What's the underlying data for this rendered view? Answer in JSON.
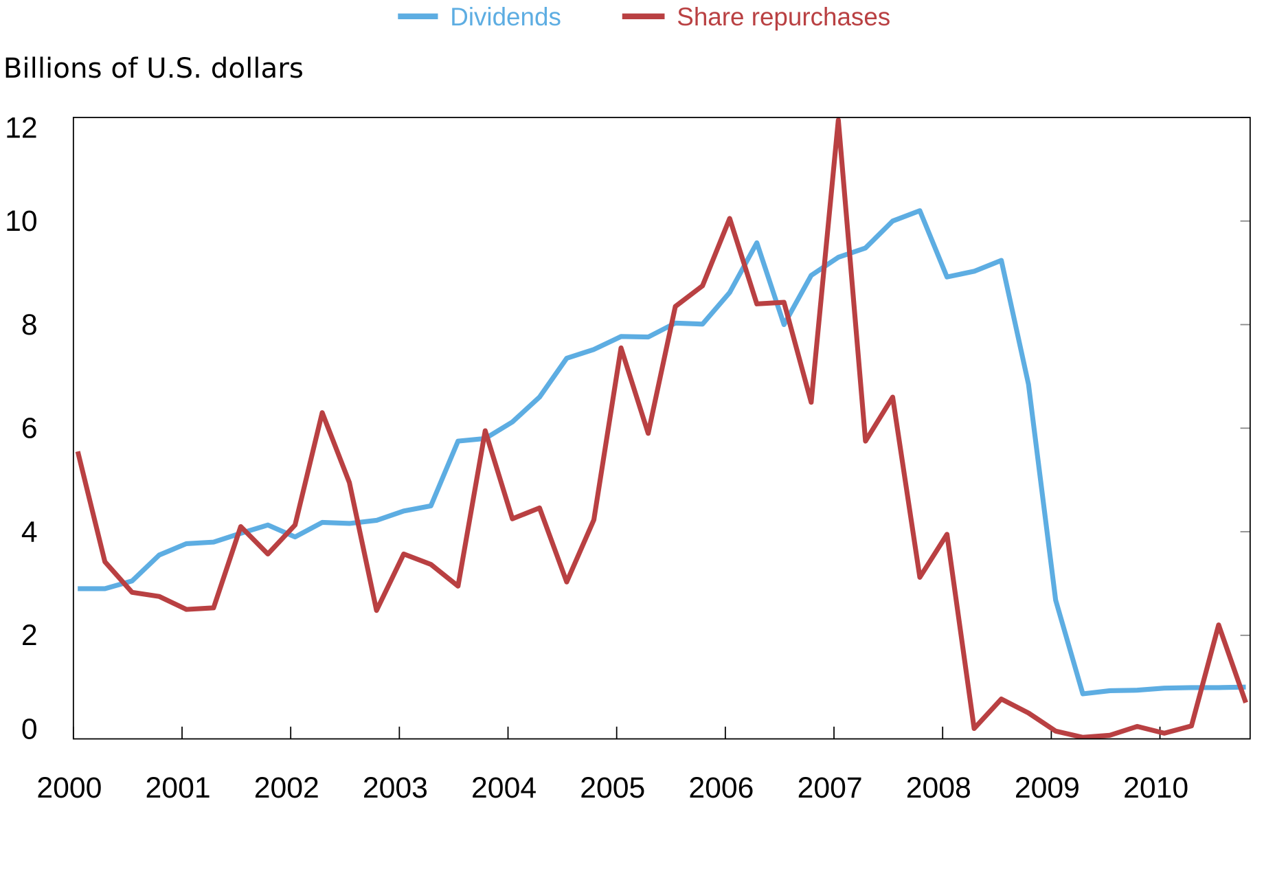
{
  "chart_data": {
    "type": "line",
    "title": "",
    "ylabel": "Billions of U.S. dollars",
    "xlabel": "",
    "ylim": [
      0,
      12
    ],
    "yticks": [
      0,
      2,
      4,
      6,
      8,
      10,
      12
    ],
    "xlim": [
      2000,
      2010.83
    ],
    "xticks": [
      "2000",
      "2001",
      "2002",
      "2003",
      "2004",
      "2005",
      "2006",
      "2007",
      "2008",
      "2009",
      "2010"
    ],
    "frequency": "quarterly",
    "x_start": "2000Q1",
    "legend_position": "top",
    "grid": false,
    "series": [
      {
        "name": "Dividends",
        "color": "#5DADE2",
        "values": [
          2.9,
          2.9,
          3.05,
          3.55,
          3.77,
          3.8,
          3.97,
          4.13,
          3.9,
          4.18,
          4.16,
          4.22,
          4.4,
          4.5,
          5.75,
          5.8,
          6.12,
          6.6,
          7.35,
          7.52,
          7.77,
          7.76,
          8.03,
          8.01,
          8.62,
          9.58,
          8.0,
          8.95,
          9.3,
          9.48,
          10.0,
          10.2,
          8.92,
          9.03,
          9.24,
          6.85,
          2.68,
          0.87,
          0.93,
          0.94,
          0.98,
          0.99,
          0.99,
          1.0
        ]
      },
      {
        "name": "Share repurchases",
        "color": "#B94042",
        "values": [
          5.55,
          3.42,
          2.83,
          2.75,
          2.5,
          2.53,
          4.1,
          3.57,
          4.13,
          6.3,
          4.95,
          2.48,
          3.57,
          3.37,
          2.95,
          5.95,
          4.25,
          4.46,
          3.03,
          4.23,
          7.55,
          5.9,
          8.35,
          8.75,
          10.05,
          8.4,
          8.43,
          6.5,
          11.95,
          5.75,
          6.6,
          3.12,
          3.95,
          0.2,
          0.77,
          0.5,
          0.15,
          0.03,
          0.07,
          0.24,
          0.11,
          0.25,
          2.2,
          0.7
        ]
      }
    ]
  }
}
